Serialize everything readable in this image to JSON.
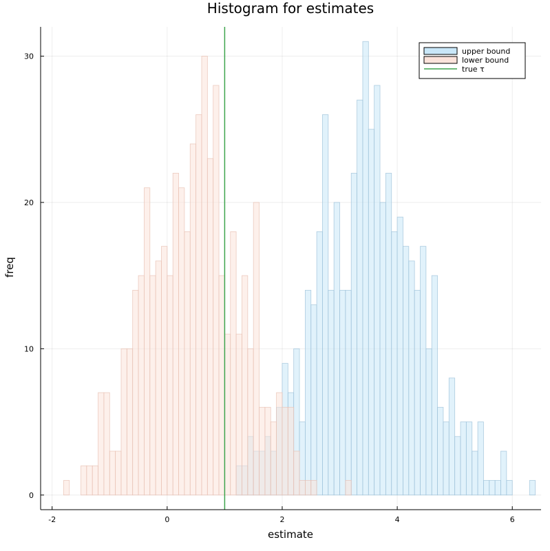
{
  "chart_data": {
    "type": "histogram",
    "title": "Histogram for estimates",
    "xlabel": "estimate",
    "ylabel": "freq",
    "xlim": [
      -2.2,
      6.5
    ],
    "ylim": [
      -1,
      32
    ],
    "xticks": [
      -2,
      0,
      2,
      4,
      6
    ],
    "xtick_labels": [
      "-2",
      "0",
      "2",
      "4",
      "6"
    ],
    "yticks": [
      0,
      10,
      20,
      30
    ],
    "ytick_labels": [
      "0",
      "10",
      "20",
      "30"
    ],
    "grid": true,
    "legend_position": "top-right",
    "bin_width": 0.1,
    "series": [
      {
        "name": "upper bound",
        "color": "#c9e7f8",
        "edge": "#9cc0d8",
        "bins": [
          [
            1.2,
            2
          ],
          [
            1.3,
            2
          ],
          [
            1.4,
            4
          ],
          [
            1.5,
            3
          ],
          [
            1.6,
            3
          ],
          [
            1.7,
            4
          ],
          [
            1.8,
            3
          ],
          [
            1.9,
            6
          ],
          [
            2.0,
            9
          ],
          [
            2.1,
            7
          ],
          [
            2.2,
            10
          ],
          [
            2.3,
            5
          ],
          [
            2.4,
            14
          ],
          [
            2.5,
            13
          ],
          [
            2.6,
            18
          ],
          [
            2.7,
            26
          ],
          [
            2.8,
            14
          ],
          [
            2.9,
            20
          ],
          [
            3.0,
            14
          ],
          [
            3.1,
            14
          ],
          [
            3.2,
            22
          ],
          [
            3.3,
            27
          ],
          [
            3.4,
            31
          ],
          [
            3.5,
            25
          ],
          [
            3.6,
            28
          ],
          [
            3.7,
            20
          ],
          [
            3.8,
            22
          ],
          [
            3.9,
            18
          ],
          [
            4.0,
            19
          ],
          [
            4.1,
            17
          ],
          [
            4.2,
            16
          ],
          [
            4.3,
            14
          ],
          [
            4.4,
            17
          ],
          [
            4.5,
            10
          ],
          [
            4.6,
            15
          ],
          [
            4.7,
            6
          ],
          [
            4.8,
            5
          ],
          [
            4.9,
            8
          ],
          [
            5.0,
            4
          ],
          [
            5.1,
            5
          ],
          [
            5.2,
            5
          ],
          [
            5.3,
            3
          ],
          [
            5.4,
            5
          ],
          [
            5.5,
            1
          ],
          [
            5.6,
            1
          ],
          [
            5.7,
            1
          ],
          [
            5.8,
            3
          ],
          [
            5.9,
            1
          ],
          [
            6.0,
            0
          ],
          [
            6.1,
            0
          ],
          [
            6.2,
            0
          ],
          [
            6.3,
            1
          ]
        ]
      },
      {
        "name": "lower bound",
        "color": "#fbe3db",
        "edge": "#e7bfb2",
        "bins": [
          [
            -1.8,
            1
          ],
          [
            -1.5,
            2
          ],
          [
            -1.4,
            2
          ],
          [
            -1.3,
            2
          ],
          [
            -1.2,
            7
          ],
          [
            -1.1,
            7
          ],
          [
            -1.0,
            3
          ],
          [
            -0.9,
            3
          ],
          [
            -0.8,
            10
          ],
          [
            -0.7,
            10
          ],
          [
            -0.6,
            14
          ],
          [
            -0.5,
            15
          ],
          [
            -0.4,
            21
          ],
          [
            -0.3,
            15
          ],
          [
            -0.2,
            16
          ],
          [
            -0.1,
            17
          ],
          [
            0.0,
            15
          ],
          [
            0.1,
            22
          ],
          [
            0.2,
            21
          ],
          [
            0.3,
            18
          ],
          [
            0.4,
            24
          ],
          [
            0.5,
            26
          ],
          [
            0.6,
            30
          ],
          [
            0.7,
            23
          ],
          [
            0.8,
            28
          ],
          [
            0.9,
            15
          ],
          [
            1.0,
            11
          ],
          [
            1.1,
            18
          ],
          [
            1.2,
            11
          ],
          [
            1.3,
            15
          ],
          [
            1.4,
            10
          ],
          [
            1.5,
            20
          ],
          [
            1.6,
            6
          ],
          [
            1.7,
            6
          ],
          [
            1.8,
            5
          ],
          [
            1.9,
            7
          ],
          [
            2.0,
            6
          ],
          [
            2.1,
            6
          ],
          [
            2.2,
            3
          ],
          [
            2.3,
            1
          ],
          [
            2.4,
            1
          ],
          [
            2.5,
            1
          ],
          [
            2.6,
            0
          ],
          [
            2.7,
            0
          ],
          [
            2.8,
            0
          ],
          [
            2.9,
            0
          ],
          [
            3.0,
            0
          ],
          [
            3.1,
            1
          ]
        ]
      }
    ],
    "vline": {
      "name": "true τ",
      "x": 1.0,
      "color": "#3da44d"
    }
  }
}
